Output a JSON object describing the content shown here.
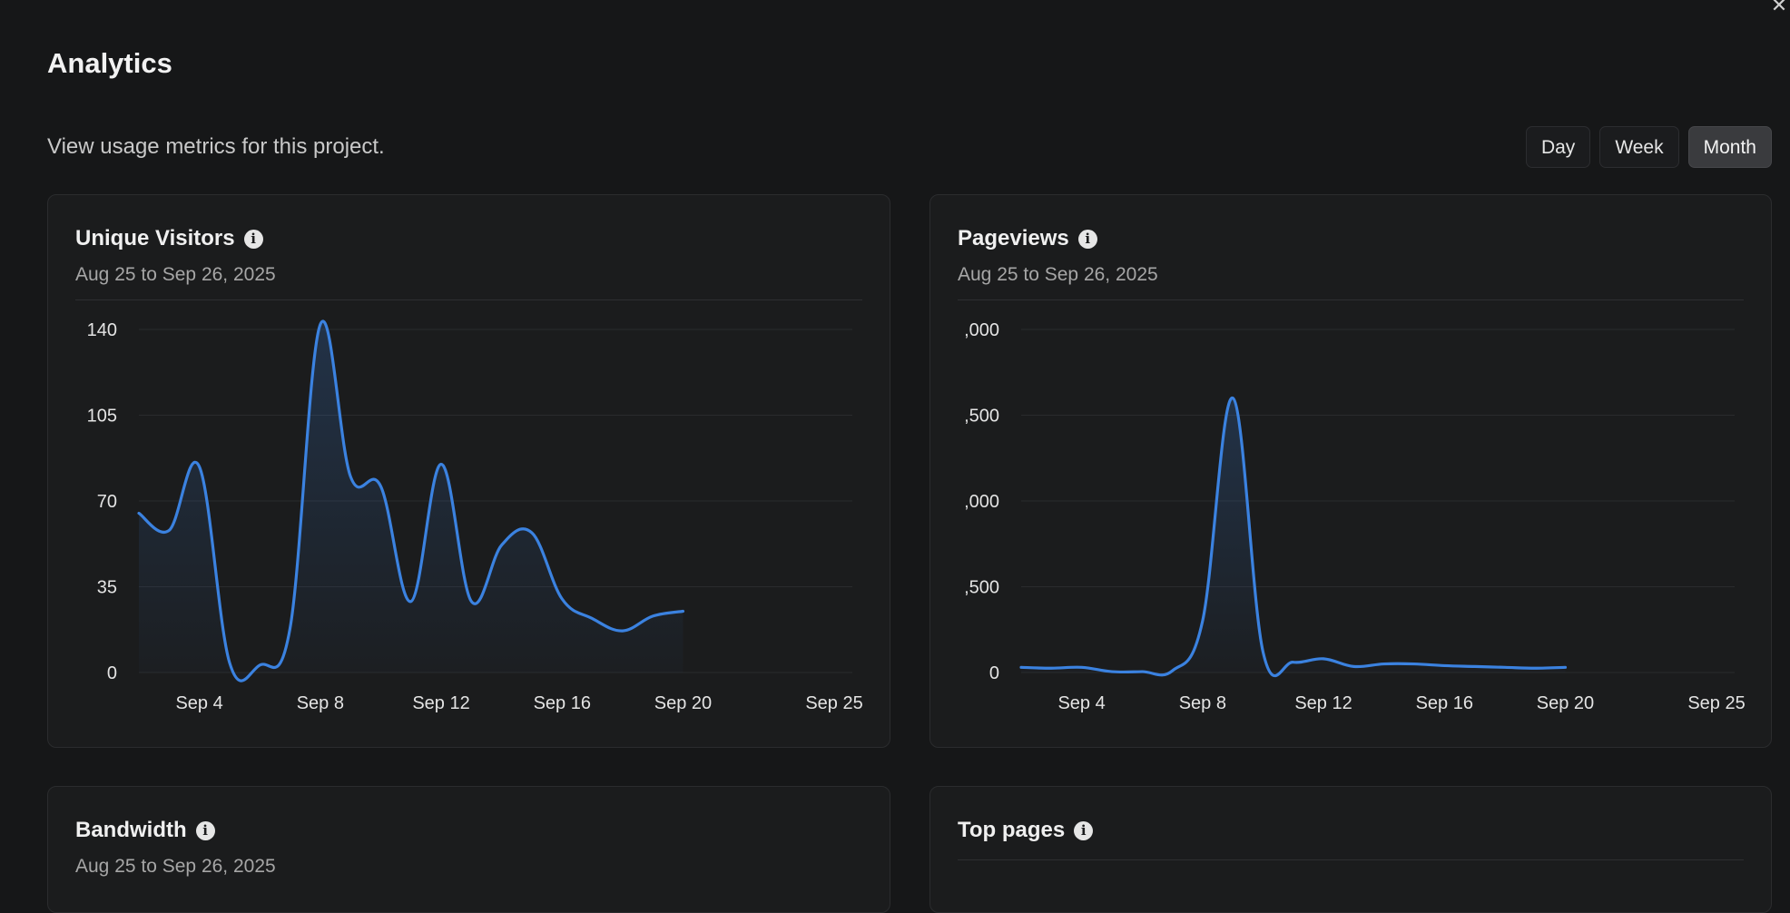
{
  "header": {
    "title": "Analytics",
    "subtitle": "View usage metrics for this project.",
    "close_icon": "close-icon"
  },
  "time_range": {
    "options": [
      "Day",
      "Week",
      "Month"
    ],
    "selected": "Month"
  },
  "cards": {
    "visitors": {
      "title": "Unique Visitors",
      "date_range": "Aug 25 to Sep 26, 2025"
    },
    "pageviews": {
      "title": "Pageviews",
      "date_range": "Aug 25 to Sep 26, 2025"
    },
    "bandwidth": {
      "title": "Bandwidth",
      "date_range": "Aug 25 to Sep 26, 2025"
    },
    "toppages": {
      "title": "Top pages"
    }
  },
  "colors": {
    "line": "#3b82e0",
    "grid": "#2a2b2d",
    "background": "#161718"
  },
  "chart_data": [
    {
      "type": "area",
      "title": "Unique Visitors",
      "ylim": [
        0,
        140
      ],
      "y_ticks": [
        "0",
        "35",
        "70",
        "105",
        "140"
      ],
      "x_ticks": [
        "Sep 4",
        "Sep 8",
        "Sep 12",
        "Sep 16",
        "Sep 20",
        "Sep 25"
      ],
      "x_tick_days": [
        4,
        8,
        12,
        16,
        20,
        25
      ],
      "x": [
        2,
        3,
        4,
        5,
        6,
        7,
        8,
        9,
        10,
        11,
        12,
        13,
        14,
        15,
        16,
        17,
        18,
        19,
        20
      ],
      "values": [
        65,
        58,
        84,
        4,
        3,
        18,
        142,
        80,
        76,
        29,
        85,
        29,
        52,
        57,
        30,
        22,
        17,
        23,
        25
      ]
    },
    {
      "type": "area",
      "title": "Pageviews",
      "ylim": [
        0,
        2000
      ],
      "y_ticks": [
        "0",
        ",500",
        ",000",
        ",500",
        ",000"
      ],
      "x_ticks": [
        "Sep 4",
        "Sep 8",
        "Sep 12",
        "Sep 16",
        "Sep 20",
        "Sep 25"
      ],
      "x_tick_days": [
        4,
        8,
        12,
        16,
        20,
        25
      ],
      "x": [
        2,
        3,
        4,
        5,
        6,
        7,
        8,
        9,
        10,
        11,
        12,
        13,
        14,
        15,
        16,
        17,
        18,
        19,
        20
      ],
      "values": [
        30,
        25,
        30,
        5,
        5,
        10,
        300,
        1600,
        120,
        60,
        80,
        35,
        50,
        50,
        40,
        35,
        30,
        25,
        30
      ]
    }
  ]
}
